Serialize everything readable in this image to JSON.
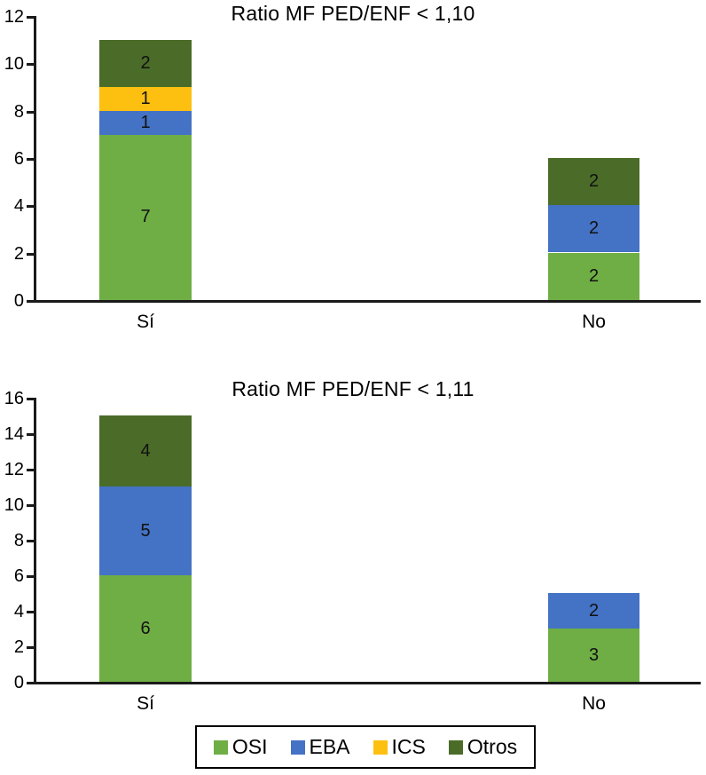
{
  "page": {
    "background": "#ffffff",
    "text_color": "#000000"
  },
  "chart_data": [
    {
      "type": "bar",
      "stacked": true,
      "title": "Ratio MF PED/ENF < 1,10",
      "categories": [
        "Sí",
        "No"
      ],
      "series": [
        {
          "name": "OSI",
          "color": "#6fae45",
          "values": [
            7,
            2
          ]
        },
        {
          "name": "EBA",
          "color": "#4472c4",
          "values": [
            1,
            2
          ]
        },
        {
          "name": "ICS",
          "color": "#fdc010",
          "values": [
            1,
            0
          ]
        },
        {
          "name": "Otros",
          "color": "#4a6c28",
          "values": [
            2,
            2
          ]
        }
      ],
      "totals": [
        11,
        6
      ],
      "ylim": [
        0,
        12
      ],
      "ytick_step": 2,
      "ytick_labels": [
        "0",
        "2",
        "4",
        "6",
        "8",
        "10",
        "12"
      ],
      "xlabel": "",
      "ylabel": "",
      "grid": false,
      "data_labels": true,
      "legend_position": "shared-bottom"
    },
    {
      "type": "bar",
      "stacked": true,
      "title": "Ratio MF PED/ENF < 1,11",
      "categories": [
        "Sí",
        "No"
      ],
      "series": [
        {
          "name": "OSI",
          "color": "#6fae45",
          "values": [
            6,
            3
          ]
        },
        {
          "name": "EBA",
          "color": "#4472c4",
          "values": [
            5,
            2
          ]
        },
        {
          "name": "ICS",
          "color": "#fdc010",
          "values": [
            0,
            0
          ]
        },
        {
          "name": "Otros",
          "color": "#4a6c28",
          "values": [
            4,
            0
          ]
        }
      ],
      "totals": [
        15,
        5
      ],
      "ylim": [
        0,
        16
      ],
      "ytick_step": 2,
      "ytick_labels": [
        "0",
        "2",
        "4",
        "6",
        "8",
        "10",
        "12",
        "14",
        "16"
      ],
      "xlabel": "",
      "ylabel": "",
      "grid": false,
      "data_labels": true,
      "legend_position": "shared-bottom"
    }
  ],
  "legend": {
    "items": [
      {
        "label": "OSI",
        "color": "#6fae45"
      },
      {
        "label": "EBA",
        "color": "#4472c4"
      },
      {
        "label": "ICS",
        "color": "#fdc010"
      },
      {
        "label": "Otros",
        "color": "#4a6c28"
      }
    ]
  }
}
